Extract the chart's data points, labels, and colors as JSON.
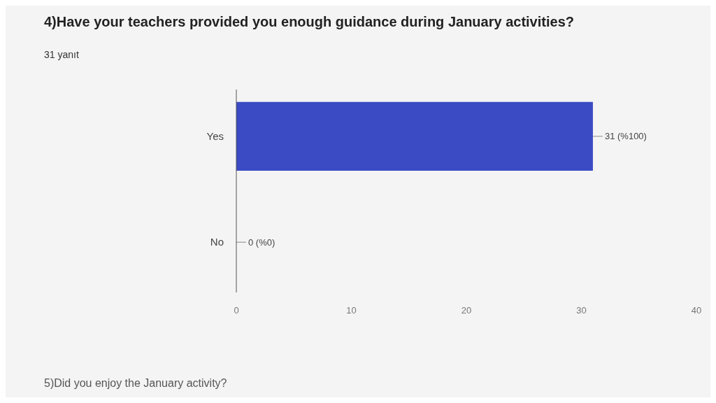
{
  "chart_data": {
    "type": "bar",
    "orientation": "horizontal",
    "title": "4)Have your teachers provided you enough guidance during January activities?",
    "subtitle": "31 yanıt",
    "categories": [
      "Yes",
      "No"
    ],
    "values": [
      31,
      0
    ],
    "color": "#3a4bc4",
    "value_labels": [
      "31 (%100)",
      "0 (%0)"
    ],
    "xlim": [
      0,
      40
    ],
    "xticks": [
      0,
      10,
      20,
      30,
      40
    ],
    "annotations": [
      "5)Did you enjoy the January activity?"
    ]
  }
}
